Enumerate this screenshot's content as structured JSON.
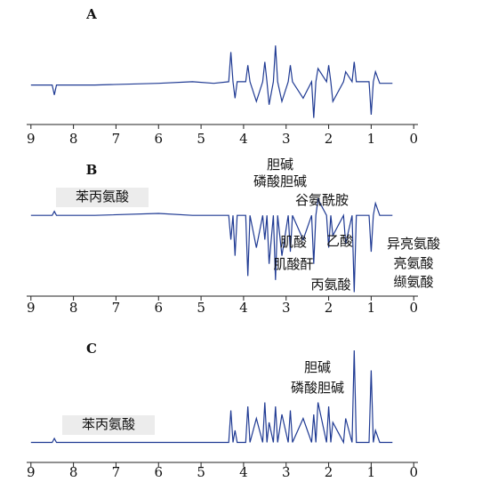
{
  "chart_data": [
    {
      "type": "line",
      "title": "A",
      "color": "#1f3a93",
      "x": [
        9.0,
        8.5,
        8.45,
        8.4,
        7.5,
        6.0,
        5.2,
        4.7,
        4.35,
        4.3,
        4.25,
        4.2,
        4.15,
        3.95,
        3.9,
        3.85,
        3.7,
        3.55,
        3.5,
        3.45,
        3.4,
        3.3,
        3.25,
        3.2,
        3.1,
        2.95,
        2.9,
        2.85,
        2.6,
        2.4,
        2.35,
        2.3,
        2.25,
        2.05,
        2.0,
        1.95,
        1.9,
        1.65,
        1.6,
        1.45,
        1.4,
        1.35,
        1.05,
        1.0,
        0.95,
        0.9,
        0.8,
        0.5
      ],
      "values": [
        0,
        0,
        -0.3,
        0,
        0,
        0.05,
        0.1,
        0.05,
        0.1,
        1.0,
        0.1,
        -0.4,
        0.1,
        0.1,
        0.6,
        0.1,
        -0.5,
        0.1,
        0.7,
        0.1,
        -0.6,
        0.1,
        1.2,
        0.1,
        -0.5,
        0.1,
        0.6,
        0.1,
        -0.4,
        0.1,
        -1.0,
        0.1,
        0.5,
        0.1,
        0.6,
        0.1,
        -0.5,
        0.1,
        0.4,
        0.1,
        0.7,
        0.1,
        0.1,
        -0.9,
        0.1,
        0.4,
        0.05,
        0.05
      ],
      "xlim": [
        9.1,
        -0.1
      ],
      "xticks": [
        9,
        8,
        7,
        6,
        5,
        4,
        3,
        2,
        1,
        0
      ],
      "ylim": [
        -1.2,
        1.5
      ],
      "annotations": []
    },
    {
      "type": "line",
      "title": "B",
      "color": "#1f3a93",
      "x": [
        9.0,
        8.5,
        8.45,
        8.4,
        7.5,
        6.0,
        5.2,
        4.7,
        4.35,
        4.3,
        4.25,
        4.2,
        4.15,
        3.95,
        3.9,
        3.85,
        3.7,
        3.55,
        3.5,
        3.45,
        3.4,
        3.3,
        3.25,
        3.2,
        3.1,
        2.95,
        2.9,
        2.85,
        2.6,
        2.4,
        2.35,
        2.3,
        2.25,
        2.05,
        2.0,
        1.95,
        1.9,
        1.65,
        1.6,
        1.45,
        1.4,
        1.35,
        1.05,
        1.0,
        0.95,
        0.9,
        0.8,
        0.5
      ],
      "values": [
        0,
        0,
        0.1,
        0,
        0,
        0.05,
        0,
        0,
        0,
        -0.6,
        0,
        -1.0,
        0,
        0,
        -1.5,
        0,
        -0.8,
        0,
        -0.6,
        0,
        -1.2,
        0,
        -1.6,
        0,
        -1.0,
        0,
        -0.9,
        0,
        -0.6,
        0,
        -1.2,
        0,
        0.4,
        0,
        -0.8,
        0,
        -0.5,
        0,
        -0.7,
        0,
        -1.9,
        0,
        0,
        -0.9,
        0,
        0.3,
        0,
        0
      ],
      "xlim": [
        9.1,
        -0.1
      ],
      "xticks": [
        9,
        8,
        7,
        6,
        5,
        4,
        3,
        2,
        1,
        0
      ],
      "ylim": [
        -2,
        0.6
      ],
      "annotations": [
        "苯丙氨酸",
        "胆碱",
        "磷酸胆碱",
        "谷氨酰胺",
        "肌酸",
        "肌酸酐",
        "乙酸",
        "丙氨酸",
        "异亮氨酸",
        "亮氨酸",
        "缬氨酸"
      ]
    },
    {
      "type": "line",
      "title": "C",
      "color": "#1f3a93",
      "x": [
        9.0,
        8.5,
        8.45,
        8.4,
        7.5,
        6.0,
        5.2,
        4.7,
        4.35,
        4.3,
        4.25,
        4.2,
        4.15,
        3.95,
        3.9,
        3.85,
        3.7,
        3.55,
        3.5,
        3.45,
        3.4,
        3.3,
        3.25,
        3.2,
        3.1,
        2.95,
        2.9,
        2.85,
        2.6,
        2.4,
        2.35,
        2.3,
        2.25,
        2.05,
        2.0,
        1.95,
        1.9,
        1.65,
        1.6,
        1.45,
        1.4,
        1.35,
        1.05,
        1.0,
        0.95,
        0.9,
        0.8,
        0.5
      ],
      "values": [
        0,
        0,
        0.1,
        0,
        0,
        0,
        0,
        0,
        0,
        0.8,
        0,
        0.3,
        0,
        0,
        0.9,
        0,
        0.6,
        0,
        1.0,
        0,
        0.5,
        0,
        0.9,
        0,
        0.7,
        0,
        0.8,
        0,
        0.6,
        0,
        0.7,
        0,
        1.0,
        0,
        0.9,
        0,
        0.5,
        0,
        0.6,
        0,
        2.3,
        0,
        0,
        1.8,
        0,
        0.3,
        0,
        0
      ],
      "xlim": [
        9.1,
        -0.1
      ],
      "xticks": [
        9,
        8,
        7,
        6,
        5,
        4,
        3,
        2,
        1,
        0
      ],
      "ylim": [
        -0.5,
        2.5
      ],
      "annotations": [
        "苯丙氨酸",
        "胆碱",
        "磷酸胆碱"
      ]
    }
  ]
}
